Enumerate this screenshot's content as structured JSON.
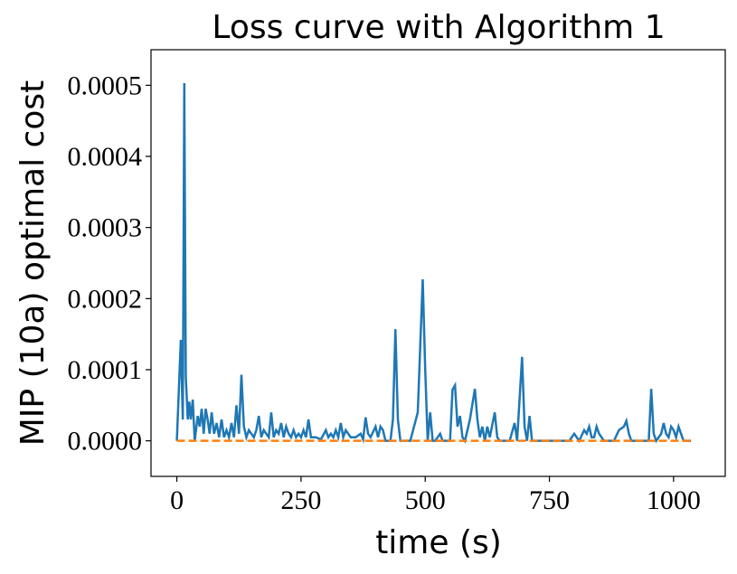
{
  "chart_data": {
    "type": "line",
    "title": "Loss curve with Algorithm 1",
    "x_label": "time (s)",
    "y_label": "MIP (10a) optimal cost",
    "xlim": [
      -52,
      1104
    ],
    "ylim": [
      -5e-05,
      0.00055
    ],
    "xticks": [
      0,
      250,
      500,
      750,
      1000
    ],
    "yticks": [
      {
        "value": 0,
        "label": "0.0000"
      },
      {
        "value": 0.0001,
        "label": "0.0001"
      },
      {
        "value": 0.0002,
        "label": "0.0002"
      },
      {
        "value": 0.0003,
        "label": "0.0003"
      },
      {
        "value": 0.0004,
        "label": "0.0004"
      },
      {
        "value": 0.0005,
        "label": "0.0005"
      }
    ],
    "series": [
      {
        "color": "#1f77b4",
        "dash": false,
        "x": [
          0,
          8,
          12,
          15,
          18,
          22,
          25,
          28,
          32,
          36,
          42,
          46,
          50,
          54,
          58,
          62,
          66,
          70,
          75,
          80,
          85,
          90,
          95,
          100,
          105,
          110,
          115,
          120,
          125,
          130,
          135,
          140,
          145,
          150,
          155,
          160,
          165,
          170,
          175,
          180,
          185,
          190,
          195,
          200,
          205,
          210,
          215,
          220,
          225,
          230,
          235,
          240,
          245,
          250,
          255,
          260,
          265,
          270,
          280,
          290,
          300,
          305,
          310,
          315,
          320,
          325,
          330,
          335,
          340,
          345,
          350,
          360,
          370,
          375,
          380,
          385,
          390,
          400,
          405,
          410,
          415,
          420,
          430,
          435,
          440,
          445,
          450,
          460,
          470,
          485,
          495,
          500,
          505,
          510,
          515,
          520,
          530,
          535,
          550,
          555,
          560,
          565,
          570,
          575,
          580,
          590,
          600,
          605,
          610,
          615,
          620,
          625,
          630,
          640,
          645,
          650,
          670,
          680,
          685,
          695,
          700,
          705,
          710,
          715,
          740,
          760,
          780,
          790,
          800,
          810,
          820,
          825,
          830,
          835,
          840,
          845,
          850,
          855,
          860,
          880,
          890,
          900,
          905,
          910,
          915,
          950,
          955,
          960,
          965,
          970,
          975,
          980,
          985,
          990,
          995,
          1000,
          1005,
          1010,
          1015,
          1020,
          1035
        ],
        "values": [
          0,
          0.000142,
          3e-05,
          0.000503,
          9e-05,
          3e-05,
          5.5e-05,
          3e-05,
          5.8e-05,
          0,
          3.5e-05,
          2e-05,
          4.5e-05,
          1e-05,
          4.5e-05,
          3e-05,
          1e-05,
          4e-05,
          1e-05,
          2.5e-05,
          5e-06,
          3e-05,
          5e-06,
          1.5e-05,
          5e-06,
          2.5e-05,
          5e-06,
          5e-05,
          1e-05,
          9.3e-05,
          2e-05,
          5e-06,
          1.5e-05,
          1e-05,
          5e-06,
          1.5e-05,
          3.5e-05,
          5e-06,
          1.5e-05,
          1e-05,
          5e-06,
          4e-05,
          5e-06,
          1.5e-05,
          1e-05,
          2.5e-05,
          5e-06,
          2e-05,
          1e-05,
          5e-06,
          1.5e-05,
          5e-06,
          1e-05,
          5e-06,
          1.5e-05,
          5e-06,
          3e-05,
          5e-06,
          5e-06,
          2e-06,
          1.5e-05,
          5e-06,
          1e-05,
          5e-06,
          1.5e-05,
          5e-06,
          2.5e-05,
          5e-06,
          1.5e-05,
          1e-05,
          5e-06,
          5e-06,
          1e-05,
          2e-06,
          3.3e-05,
          1e-05,
          5e-06,
          2e-05,
          5e-06,
          2e-05,
          1.5e-05,
          0,
          0,
          3e-05,
          0.000157,
          3e-05,
          0,
          0,
          0,
          4e-05,
          0.000227,
          0.0001,
          0,
          4e-05,
          0,
          0,
          1e-05,
          0,
          0,
          7.2e-05,
          7.8e-05,
          2e-05,
          3.5e-05,
          5e-06,
          0,
          3e-05,
          7.3e-05,
          3e-05,
          5e-06,
          2e-05,
          0,
          2e-05,
          5e-06,
          4e-05,
          5e-06,
          0,
          0,
          2.5e-05,
          0,
          0.000118,
          2e-05,
          0,
          3.5e-05,
          0,
          0,
          0,
          0,
          0,
          1e-05,
          0,
          1.5e-05,
          1e-05,
          2e-05,
          5e-06,
          5e-06,
          2e-05,
          1e-05,
          5e-06,
          0,
          0,
          1.5e-05,
          2e-05,
          2.8e-05,
          1e-05,
          0,
          0,
          7.3e-05,
          1e-05,
          0,
          5e-06,
          1e-05,
          2.5e-05,
          1e-05,
          5e-06,
          2e-05,
          1.5e-05,
          5e-06,
          2e-05,
          1e-05,
          0,
          0
        ]
      },
      {
        "color": "#ff7f0e",
        "dash": true,
        "x": [
          0,
          1035
        ],
        "values": [
          0,
          0
        ]
      }
    ]
  }
}
